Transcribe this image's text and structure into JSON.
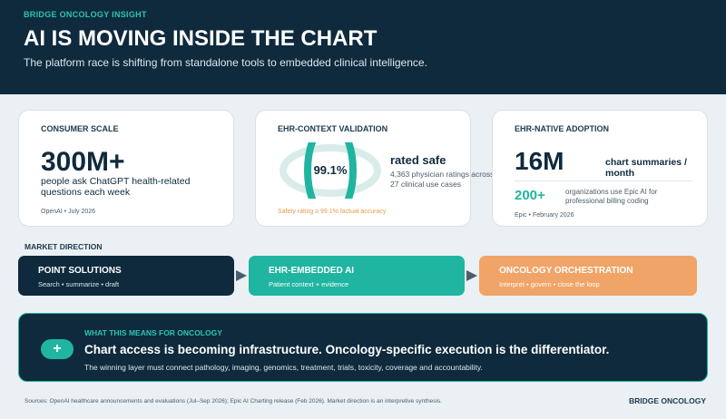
{
  "header": {
    "kicker": "BRIDGE ONCOLOGY INSIGHT",
    "title": "AI IS MOVING INSIDE THE CHART",
    "subtitle": "The platform race is shifting from standalone tools to embedded clinical intelligence."
  },
  "cards": [
    {
      "title": "CONSUMER SCALE",
      "stat": "300M+",
      "text": "people ask ChatGPT health-related questions each week",
      "source": "OpenAI • July 2026"
    },
    {
      "title": "EHR-CONTEXT VALIDATION",
      "ring": {
        "value": 99.1,
        "label": "99.1%"
      },
      "stat": "rated safe",
      "text": "4,363 physician ratings across 27 clinical use cases",
      "note": "Safety rating ≥ 99.1% factual accuracy"
    },
    {
      "title": "EHR-NATIVE ADOPTION",
      "stat": "16M",
      "stat_label": "chart summaries / month",
      "secondary_stat": "200+",
      "secondary_text": "organizations use Epic AI for professional billing coding",
      "source": "Epic • February 2026"
    }
  ],
  "market": {
    "label": "MARKET DIRECTION",
    "steps": [
      {
        "title": "POINT SOLUTIONS",
        "text": "Search • summarize • draft"
      },
      {
        "title": "EHR-EMBEDDED AI",
        "text": "Patient context + evidence"
      },
      {
        "title": "ONCOLOGY ORCHESTRATION",
        "text": "Interpret • govern • close the loop"
      }
    ]
  },
  "callout": {
    "icon": "+",
    "kicker": "WHAT THIS MEANS FOR ONCOLOGY",
    "headline": "Chart access is becoming infrastructure. Oncology-specific execution is the differentiator.",
    "text": "The winning layer must connect pathology, imaging, genomics, treatment, trials, toxicity, coverage and accountability."
  },
  "footer": {
    "sources": "Sources: OpenAI healthcare announcements and evaluations (Jul–Sep 2026); Epic AI Charting release (Feb 2026). Market direction is an interpretive synthesis.",
    "brand": "BRIDGE ONCOLOGY"
  }
}
